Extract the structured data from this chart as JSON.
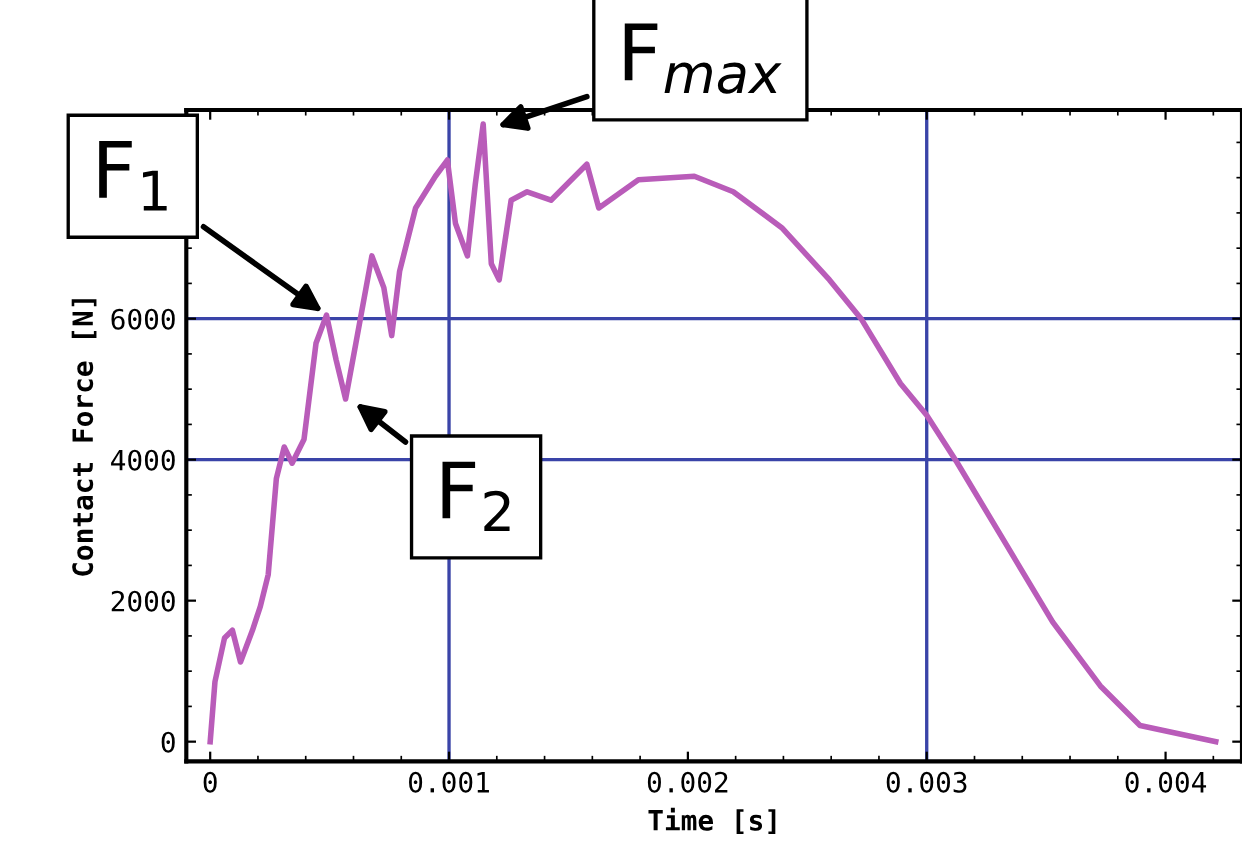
{
  "chart_data": {
    "type": "line",
    "xlabel": "Time [s]",
    "ylabel": "Contact Force [N]",
    "xlim": [
      -0.0001,
      0.00432
    ],
    "ylim": [
      -280,
      8960
    ],
    "xticks": [
      0,
      0.001,
      0.002,
      0.003,
      0.004
    ],
    "yticks": [
      0,
      2000,
      4000,
      6000
    ],
    "grid": false,
    "marker": "none",
    "line_style": "solid",
    "series": [
      {
        "color": "#b95cb9",
        "x": [
          0,
          2e-05,
          6e-05,
          9.3e-05,
          0.000127,
          0.000177,
          0.00021,
          0.000243,
          0.000277,
          0.00031,
          0.000343,
          0.000393,
          0.000443,
          0.000487,
          0.000527,
          0.000567,
          0.00061,
          0.000677,
          0.000727,
          0.00076,
          0.000793,
          0.00086,
          0.000943,
          0.000993,
          0.001027,
          0.001077,
          0.00111,
          0.001143,
          0.001177,
          0.00121,
          0.00126,
          0.001327,
          0.001427,
          0.001577,
          0.001627,
          0.001793,
          0.002027,
          0.00219,
          0.002393,
          0.002593,
          0.002727,
          0.00289,
          0.003,
          0.003127,
          0.003327,
          0.003527,
          0.003727,
          0.003893,
          0.00421
        ],
        "values": [
          0,
          850,
          1470,
          1580,
          1130,
          1580,
          1920,
          2370,
          3730,
          4180,
          3950,
          4290,
          5650,
          6050,
          5420,
          4860,
          5650,
          6890,
          6440,
          5760,
          6670,
          7570,
          8020,
          8250,
          7350,
          6890,
          7910,
          8760,
          6780,
          6550,
          7680,
          7800,
          7680,
          8190,
          7570,
          7970,
          8020,
          7800,
          7290,
          6550,
          5990,
          5080,
          4630,
          3960,
          2830,
          1700,
          790,
          230,
          0
        ]
      }
    ],
    "ref_lines": [
      {
        "axis": "x",
        "value": 0.001,
        "color": "#3a44a8"
      },
      {
        "axis": "x",
        "value": 0.003,
        "color": "#3a44a8"
      },
      {
        "axis": "y",
        "value": 4000,
        "color": "#3a44a8"
      },
      {
        "axis": "y",
        "value": 6000,
        "color": "#3a44a8"
      }
    ],
    "annotations": [
      {
        "text": "F$_{1}$",
        "x": 0.00049,
        "y": 6050
      },
      {
        "text": "F$_{2}$",
        "x": 0.00059,
        "y": 4850
      },
      {
        "text": "F$_{max}$",
        "x": 0.00118,
        "y": 8700
      }
    ]
  }
}
